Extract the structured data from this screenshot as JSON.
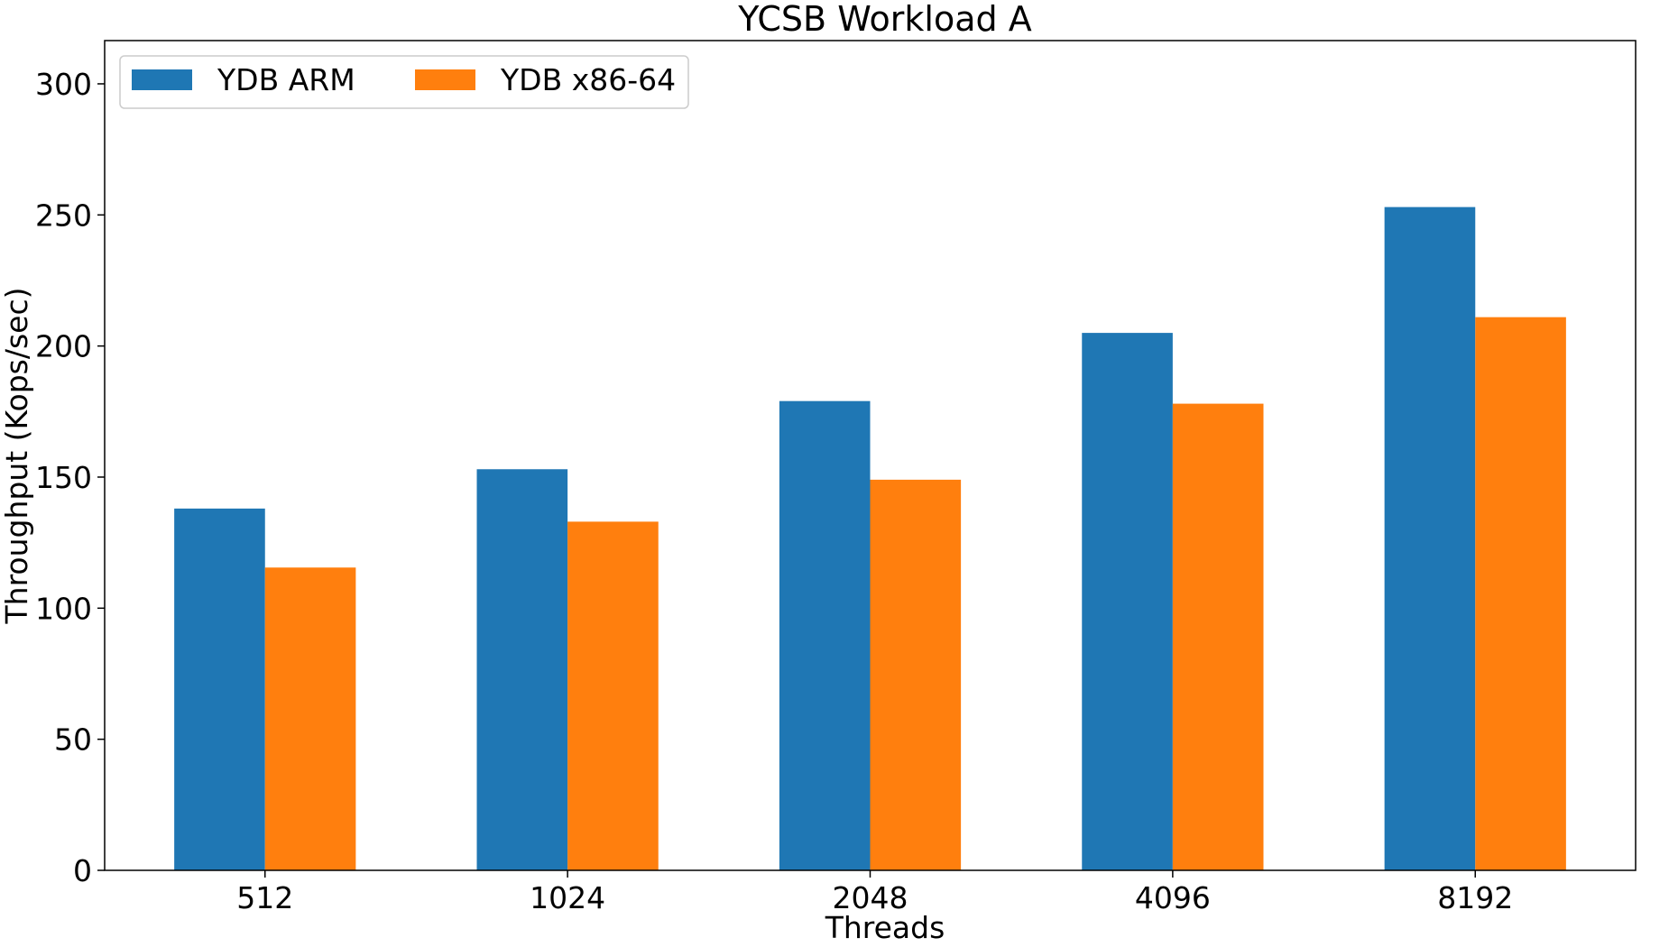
{
  "chart_data": {
    "type": "bar",
    "title": "YCSB Workload A",
    "xlabel": "Threads",
    "ylabel": "Throughput (Kops/sec)",
    "categories": [
      "512",
      "1024",
      "2048",
      "4096",
      "8192"
    ],
    "series": [
      {
        "name": "YDB ARM",
        "color": "#1f77b4",
        "values": [
          138,
          153,
          179,
          205,
          253
        ]
      },
      {
        "name": "YDB x86-64",
        "color": "#ff7f0e",
        "values": [
          115.5,
          133,
          149,
          178,
          211
        ]
      }
    ],
    "ylim": [
      0,
      316.5
    ],
    "yticks": [
      "0",
      "50",
      "100",
      "150",
      "200",
      "250",
      "300"
    ],
    "grid": false,
    "legend": {
      "placement": "top-left",
      "columns": 2
    }
  }
}
